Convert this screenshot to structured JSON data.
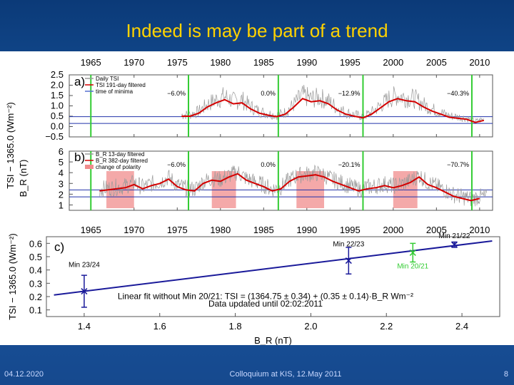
{
  "slide": {
    "title": "Indeed is may be part of a trend",
    "footer_date": "04.12.2020",
    "footer_event": "Colloquium at KIS, 12.May 2011",
    "page_number": "8"
  },
  "colors": {
    "background": "#0b3a78",
    "title": "#ffd200",
    "tsi_raw": "#9a9a9a",
    "filtered": "#d40000",
    "minima_lines": "#33cc33",
    "polarity": "#f08c8c",
    "fit": "#1a1a9a"
  },
  "chart_data": [
    {
      "type": "line",
      "panel": "a)",
      "title": "",
      "ylabel": "TSI − 1365.0 (Wm⁻²)",
      "xlim": [
        1962.5,
        2011.5
      ],
      "ylim": [
        -0.5,
        2.5
      ],
      "xticks": [
        "1965",
        "1970",
        "1975",
        "1980",
        "1985",
        "1990",
        "1995",
        "2000",
        "2005",
        "2010"
      ],
      "yticks": [
        "2.5",
        "2.0",
        "1.5",
        "1.0",
        "0.5",
        "0.0",
        "−0.5"
      ],
      "legend": [
        "Daily TSI",
        "TSI 191-day filtered",
        "time of minima"
      ],
      "minima_years": [
        1965.0,
        1976.3,
        1986.7,
        1996.5,
        2009.1
      ],
      "minima_labels": [
        "−6.0%",
        "0.0%",
        "−12.9%",
        "−40.3%"
      ],
      "reference_lines": [
        0.48,
        0.15
      ],
      "series": [
        {
          "name": "TSI 191-day filtered",
          "x": [
            1975.5,
            1976.5,
            1977.5,
            1978.5,
            1979.5,
            1980.5,
            1981.5,
            1982.5,
            1983.5,
            1984.5,
            1985.5,
            1986.5,
            1987.5,
            1988.5,
            1989.5,
            1990.5,
            1991.5,
            1992.5,
            1993.5,
            1994.5,
            1995.5,
            1996.5,
            1997.5,
            1998.5,
            1999.5,
            2000.5,
            2001.5,
            2002.5,
            2003.5,
            2004.5,
            2005.5,
            2006.5,
            2007.5,
            2008.5,
            2009.5,
            2010.5
          ],
          "values": [
            0.5,
            0.5,
            0.65,
            0.95,
            1.15,
            1.3,
            1.1,
            1.15,
            0.85,
            0.65,
            0.55,
            0.48,
            0.6,
            0.95,
            1.35,
            1.2,
            1.25,
            1.1,
            0.8,
            0.6,
            0.5,
            0.42,
            0.6,
            0.9,
            1.2,
            1.35,
            1.25,
            1.2,
            0.95,
            0.75,
            0.6,
            0.45,
            0.4,
            0.35,
            0.2,
            0.3
          ]
        }
      ]
    },
    {
      "type": "line",
      "panel": "b)",
      "title": "",
      "ylabel": "B_R (nT)",
      "xlim": [
        1962.5,
        2011.5
      ],
      "ylim": [
        0.5,
        6.0
      ],
      "xticks": [
        "1965",
        "1970",
        "1975",
        "1980",
        "1985",
        "1990",
        "1995",
        "2000",
        "2005",
        "2010"
      ],
      "yticks": [
        "6",
        "5",
        "4",
        "3",
        "2",
        "1"
      ],
      "legend": [
        "B_R 13-day filtered",
        "B_R 382-day filtered",
        "change of polarity"
      ],
      "minima_years": [
        1965.0,
        1976.3,
        1986.7,
        1996.5,
        2009.1
      ],
      "minima_labels": [
        "−6.0%",
        "0.0%",
        "−20.1%",
        "−70.7%"
      ],
      "polarity_bands": [
        [
          1966.8,
          1970.0
        ],
        [
          1979.0,
          1981.8
        ],
        [
          1988.8,
          1992.0
        ],
        [
          2000.0,
          2002.8
        ]
      ],
      "reference_lines": [
        2.4,
        1.75
      ],
      "series": [
        {
          "name": "B_R 382-day filtered",
          "x": [
            1966,
            1967,
            1968,
            1969,
            1970,
            1971,
            1972,
            1973,
            1974,
            1975,
            1976,
            1977,
            1978,
            1979,
            1980,
            1981,
            1982,
            1983,
            1984,
            1985,
            1986,
            1987,
            1988,
            1989,
            1990,
            1991,
            1992,
            1993,
            1994,
            1995,
            1996,
            1997,
            1998,
            1999,
            2000,
            2001,
            2002,
            2003,
            2004,
            2005,
            2006,
            2007,
            2008,
            2009,
            2010
          ],
          "values": [
            2.3,
            2.4,
            2.5,
            2.6,
            2.9,
            2.5,
            2.8,
            3.0,
            3.4,
            2.7,
            2.4,
            2.3,
            3.0,
            3.3,
            3.2,
            3.6,
            3.9,
            3.3,
            3.0,
            2.7,
            2.3,
            2.5,
            3.2,
            3.6,
            3.7,
            3.8,
            3.6,
            3.2,
            2.9,
            2.6,
            2.3,
            2.5,
            2.6,
            2.8,
            2.6,
            2.8,
            3.1,
            3.6,
            2.9,
            2.6,
            2.2,
            1.8,
            1.6,
            1.4,
            1.6
          ]
        }
      ]
    },
    {
      "type": "scatter",
      "panel": "c)",
      "title": "",
      "xlabel": "B_R (nT)",
      "ylabel": "TSI − 1365.0 (Wm⁻²)",
      "xlim": [
        1.3,
        2.5
      ],
      "ylim": [
        0.05,
        0.65
      ],
      "xticks": [
        "1.4",
        "1.6",
        "1.8",
        "2.0",
        "2.2",
        "2.4"
      ],
      "yticks": [
        "0.6",
        "0.5",
        "0.4",
        "0.3",
        "0.2",
        "0.1"
      ],
      "points": [
        {
          "label": "Min 23/24",
          "x": 1.4,
          "y": 0.24,
          "yerr": 0.12,
          "excluded": false
        },
        {
          "label": "Min 22/23",
          "x": 2.1,
          "y": 0.47,
          "yerr": 0.1,
          "excluded": false
        },
        {
          "label": "Min 20/21",
          "x": 2.27,
          "y": 0.53,
          "yerr": 0.07,
          "excluded": true
        },
        {
          "label": "Min 21/22",
          "x": 2.38,
          "y": 0.59,
          "yerr": 0.02,
          "excluded": false
        }
      ],
      "fit": {
        "intercept": -0.25,
        "slope": 0.35,
        "x_range": [
          1.32,
          2.48
        ]
      },
      "annotation_line1": "Linear fit without Min 20/21: TSI = (1364.75 ± 0.34) + (0.35 ± 0.14)·B_R Wm⁻²",
      "annotation_line2": "Data updated until 02:02:2011"
    }
  ]
}
